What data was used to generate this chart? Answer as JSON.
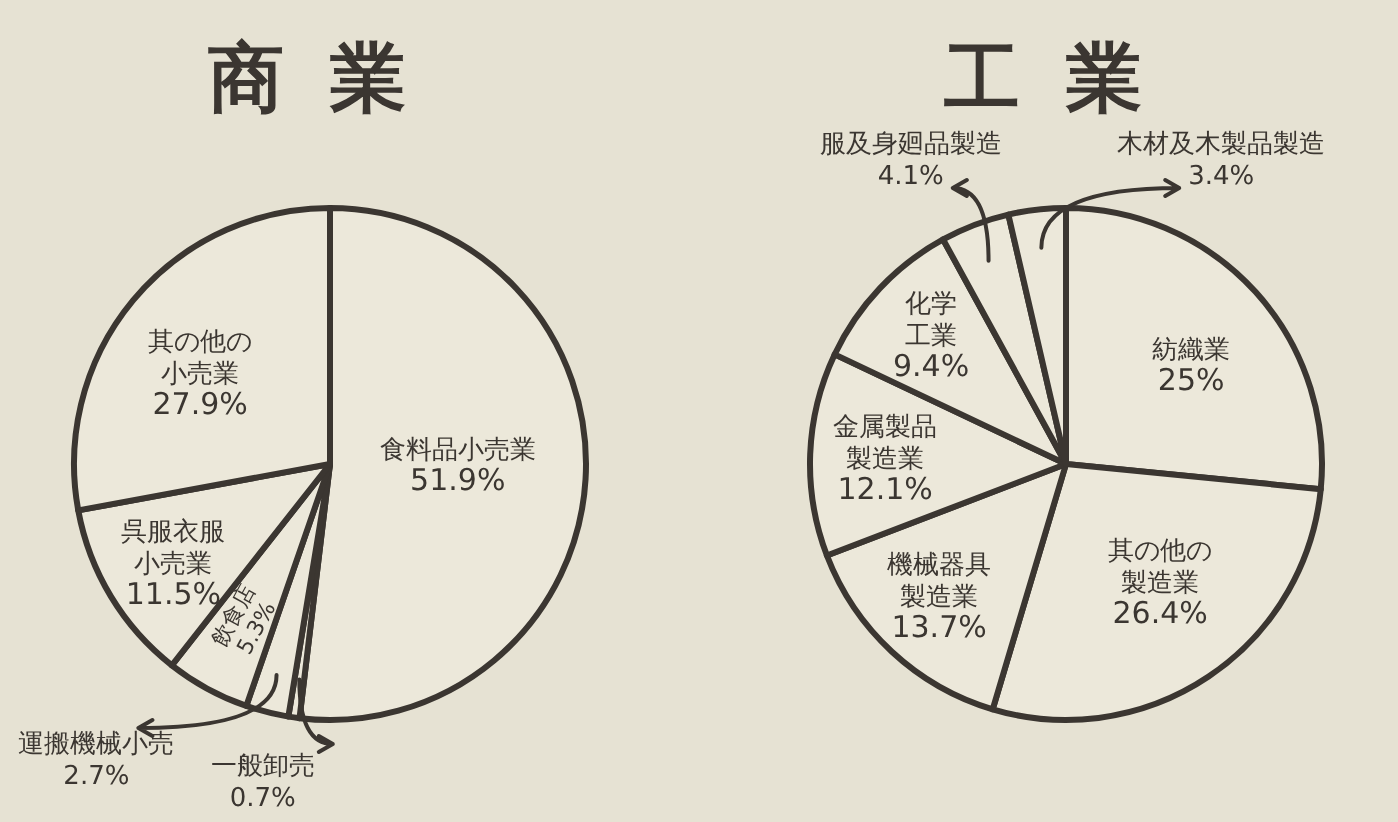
{
  "chart_data": [
    {
      "type": "pie",
      "title": "商業",
      "categories": [
        "食料品小売業",
        "一般卸売",
        "運搬機械小売",
        "飲食店",
        "呉服衣服小売業",
        "其の他の小売業"
      ],
      "values": [
        51.9,
        0.7,
        2.7,
        5.3,
        11.5,
        27.9
      ],
      "colors": [
        "#ece8da",
        "#ece8da",
        "#ece8da",
        "#ece8da",
        "#ece8da",
        "#ece8da"
      ],
      "value_labels": [
        "51.9%",
        "0.7%",
        "2.7%",
        "5.3%",
        "11.5%",
        "27.9%"
      ]
    },
    {
      "type": "pie",
      "title": "工業",
      "categories": [
        "紡織業",
        "其の他の製造業",
        "機械器具製造業",
        "金属製品製造業",
        "化学工業",
        "服及身廻品製造",
        "木材及木製品製造"
      ],
      "values": [
        25,
        26.4,
        13.7,
        12.1,
        9.4,
        4.1,
        3.4
      ],
      "colors": [
        "#ece8da",
        "#ece8da",
        "#ece8da",
        "#ece8da",
        "#ece8da",
        "#ece8da",
        "#ece8da"
      ],
      "value_labels": [
        "25%",
        "26.4%",
        "13.7%",
        "12.1%",
        "9.4%",
        "4.1%",
        "3.4%"
      ]
    }
  ]
}
